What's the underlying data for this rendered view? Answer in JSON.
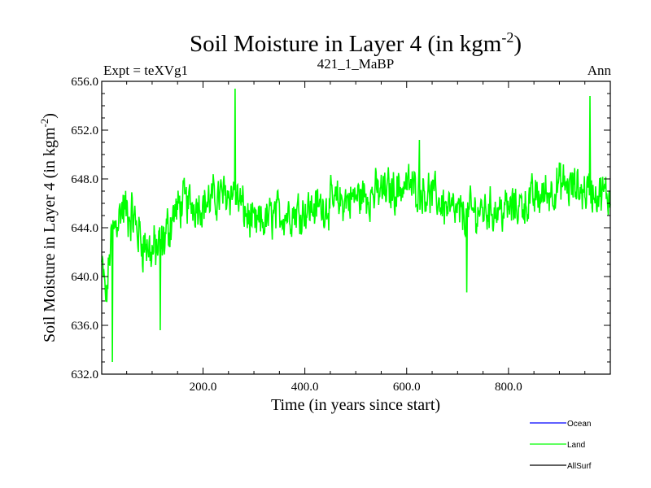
{
  "chart_data": {
    "type": "line",
    "title": "Soil Moisture in Layer 4 (in kgm",
    "title_superscript": "-2",
    "title_suffix": ")",
    "subtitle_left": "Expt = teXVg1",
    "subtitle_center": "421_1_MaBP",
    "subtitle_right": "Ann",
    "xlabel": "Time (in years since start)",
    "ylabel": "Soil Moisture in Layer 4 (in kgm",
    "ylabel_superscript": "-2",
    "ylabel_suffix": ")",
    "xlim": [
      1,
      1000
    ],
    "ylim": [
      632.0,
      656.0
    ],
    "x_ticks": [
      200,
      400,
      600,
      800
    ],
    "x_tick_labels": [
      "200.0",
      "400.0",
      "600.0",
      "800.0"
    ],
    "y_ticks": [
      632,
      636,
      640,
      644,
      648,
      652,
      656
    ],
    "y_tick_labels": [
      "632.0",
      "636.0",
      "640.0",
      "644.0",
      "648.0",
      "652.0",
      "656.0"
    ],
    "series": [
      {
        "name": "Land",
        "color": "#00ff00",
        "description": "noisy annual series ~1000 years",
        "anchors_x": [
          1,
          10,
          20,
          40,
          60,
          80,
          100,
          120,
          140,
          160,
          200,
          260,
          300,
          340,
          400,
          460,
          500,
          560,
          600,
          640,
          700,
          760,
          800,
          860,
          900,
          960,
          1000
        ],
        "anchors_y": [
          641.0,
          638.0,
          643.5,
          645.5,
          645.0,
          643.0,
          642.0,
          642.5,
          645.0,
          646.0,
          646.0,
          647.0,
          644.0,
          645.0,
          645.5,
          646.0,
          646.5,
          647.0,
          647.5,
          647.0,
          645.0,
          645.5,
          645.5,
          646.5,
          647.5,
          647.0,
          646.5
        ],
        "extremes": [
          {
            "x": 22,
            "y": 633.0
          },
          {
            "x": 116,
            "y": 635.6
          },
          {
            "x": 263,
            "y": 655.4
          },
          {
            "x": 960,
            "y": 654.8
          },
          {
            "x": 625,
            "y": 651.2
          },
          {
            "x": 718,
            "y": 638.7
          }
        ]
      },
      {
        "name": "Ocean",
        "color": "#0000ff",
        "values": []
      },
      {
        "name": "AllSurf",
        "color": "#000000",
        "values": []
      }
    ],
    "legend": {
      "position": "bottom-right",
      "entries": [
        {
          "label": "Ocean",
          "color": "#0000ff"
        },
        {
          "label": "Land",
          "color": "#00ff00"
        },
        {
          "label": "AllSurf",
          "color": "#000000"
        }
      ]
    }
  }
}
